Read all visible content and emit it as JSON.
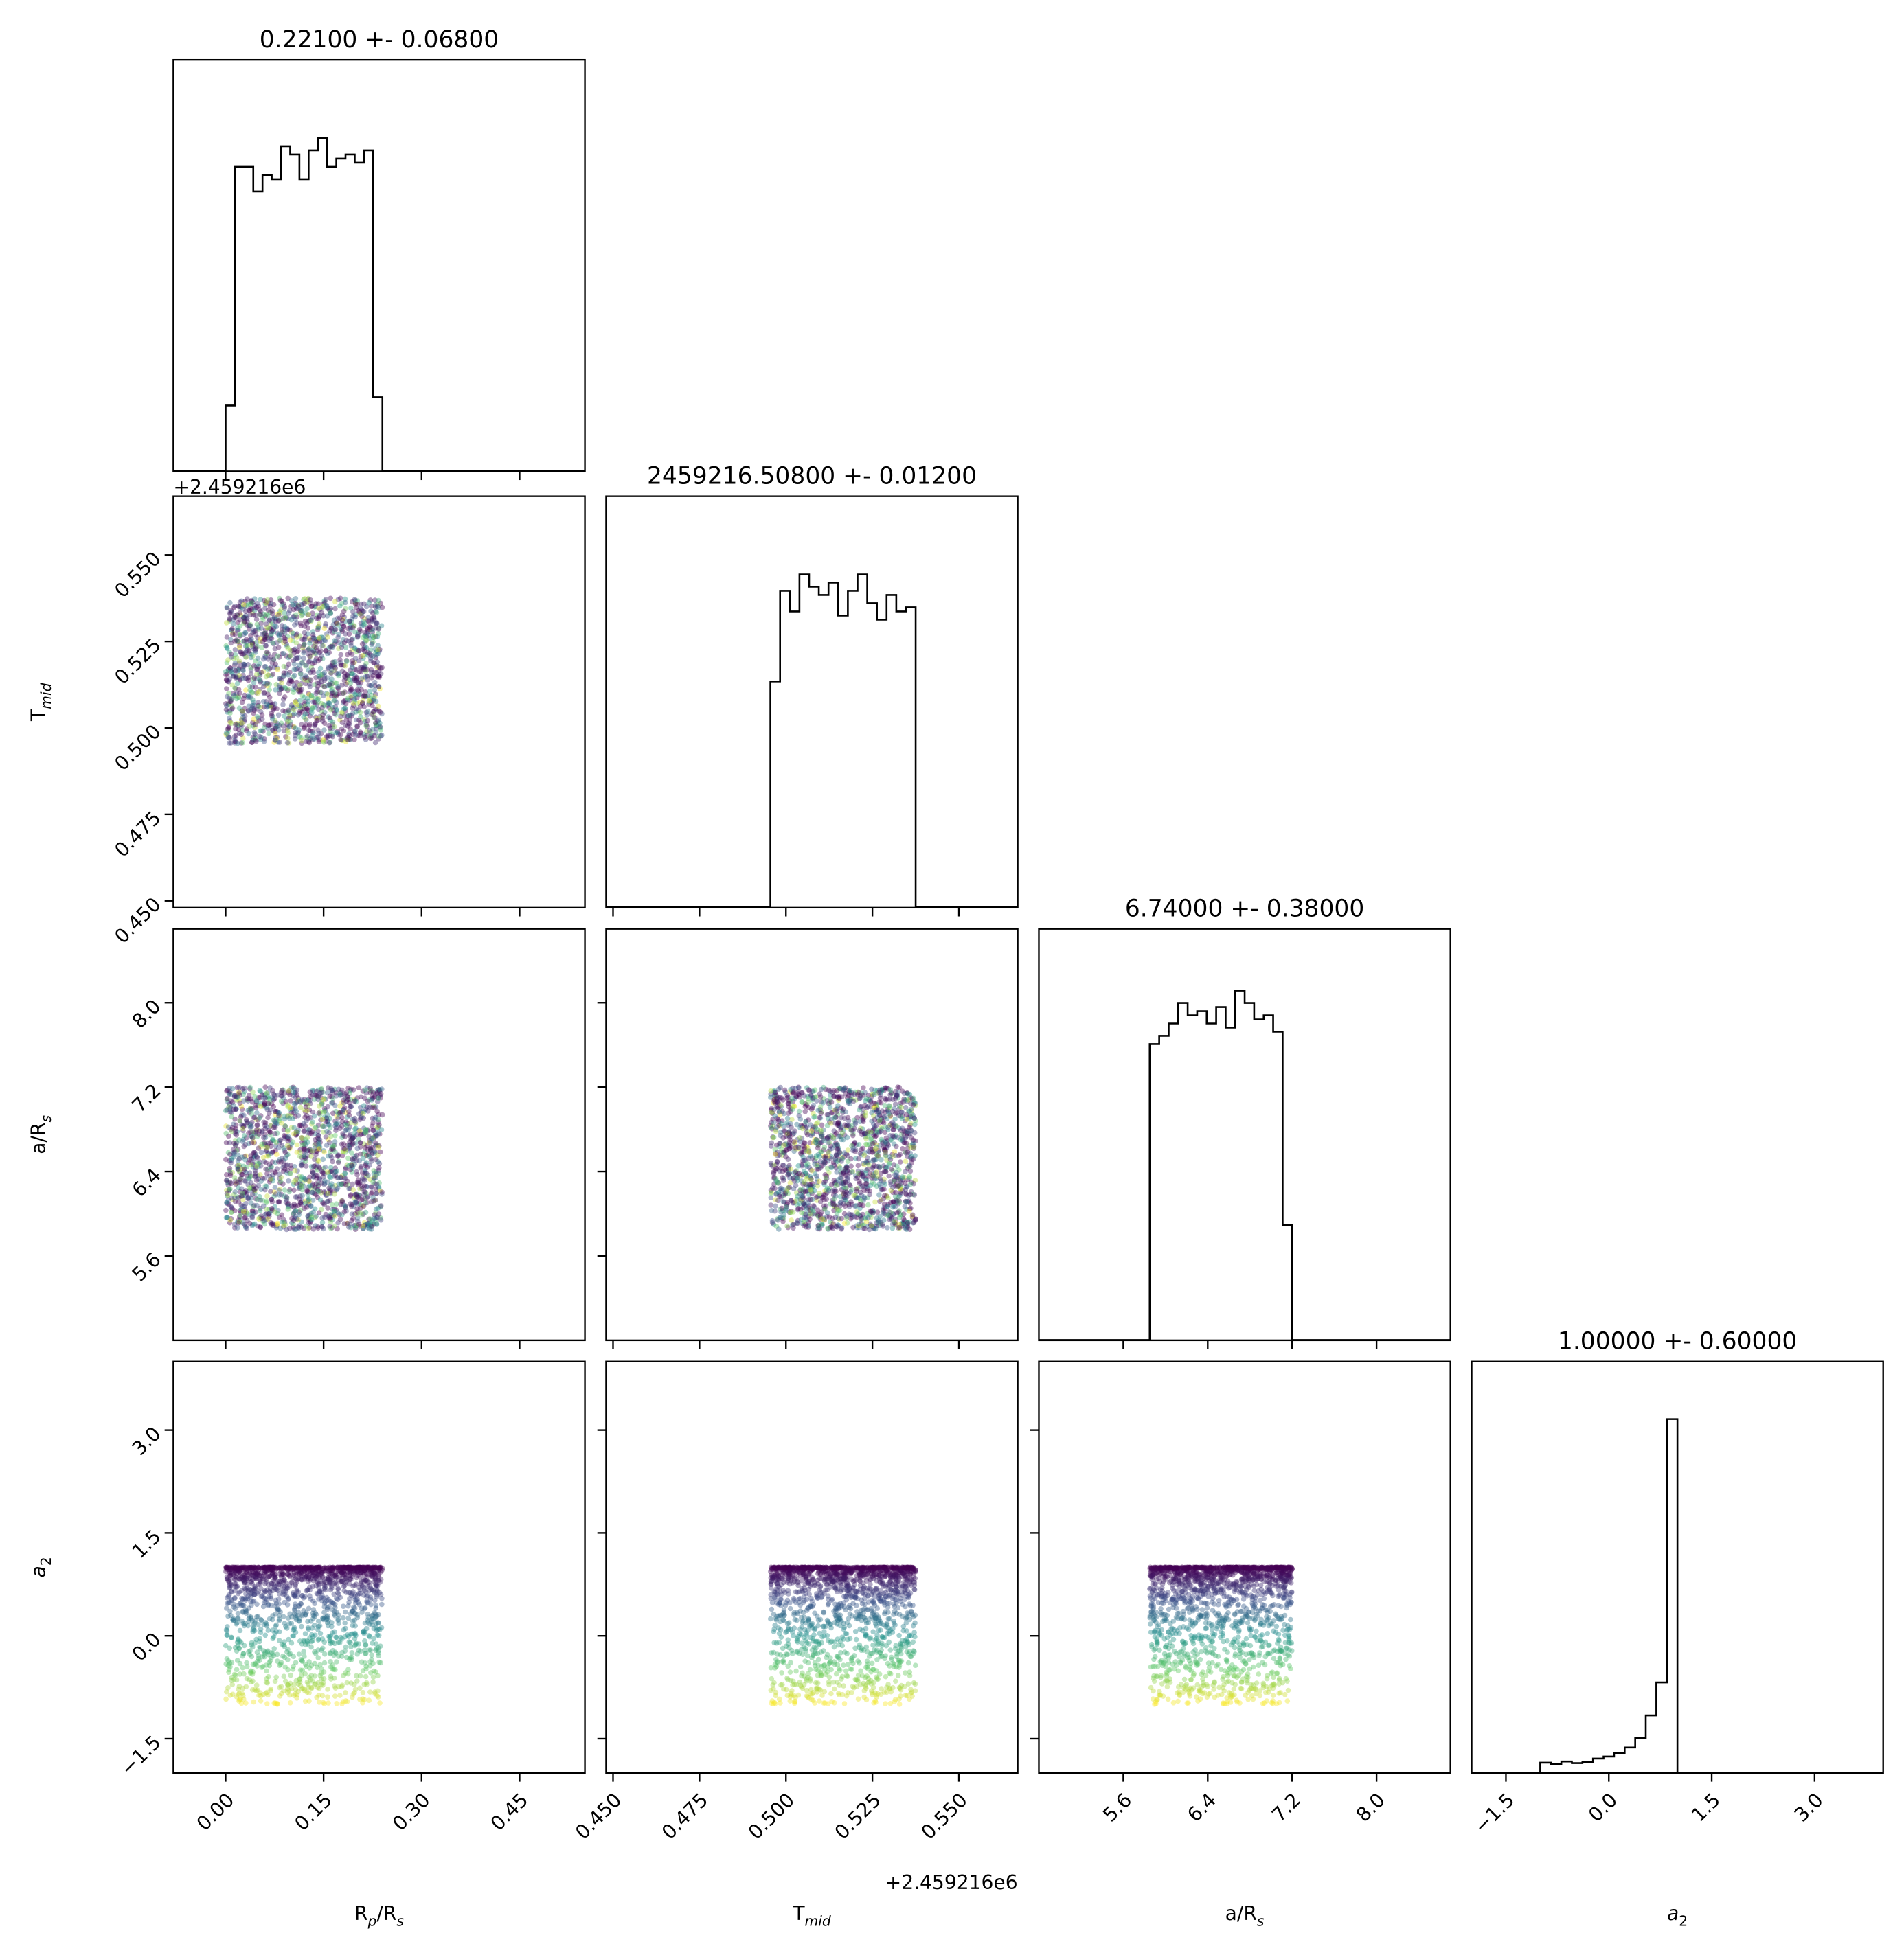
{
  "chart_data": {
    "type": "corner_plot",
    "parameters": [
      {
        "key": "rp",
        "label_main": "R",
        "label_sub": "p",
        "label_tail": "/R",
        "label_tail_sub": "s",
        "title": "0.22100 +- 0.06800",
        "range": [
          -0.08,
          0.55
        ],
        "ticks": [
          0.0,
          0.15,
          0.3,
          0.45
        ],
        "tick_labels": [
          "0.00",
          "0.15",
          "0.30",
          "0.45"
        ],
        "dist": [
          0.0,
          0.24
        ]
      },
      {
        "key": "tmid",
        "label_main": "T",
        "label_sub": "mid",
        "label_tail": "",
        "label_tail_sub": "",
        "title": "2459216.50800 +- 0.01200",
        "range": [
          0.448,
          0.567
        ],
        "ticks": [
          0.45,
          0.475,
          0.5,
          0.525,
          0.55
        ],
        "tick_labels": [
          "0.450",
          "0.475",
          "0.500",
          "0.525",
          "0.550"
        ],
        "offset": "+2.459216e6",
        "dist": [
          0.4955,
          0.5375
        ]
      },
      {
        "key": "ars",
        "label_main": "a/R",
        "label_sub": "s",
        "label_tail": "",
        "label_tail_sub": "",
        "title": "6.74000 +- 0.38000",
        "range": [
          4.8,
          8.7
        ],
        "ticks": [
          5.6,
          6.4,
          7.2,
          8.0
        ],
        "tick_labels": [
          "5.6",
          "6.4",
          "7.2",
          "8.0"
        ],
        "dist": [
          5.85,
          7.2
        ]
      },
      {
        "key": "a2",
        "label_main": "a",
        "label_sub": "2",
        "label_tail": "",
        "label_tail_sub": "",
        "italic": true,
        "title": "1.00000 +- 0.60000",
        "range": [
          -2.0,
          4.0
        ],
        "ticks": [
          -1.5,
          0.0,
          1.5,
          3.0
        ],
        "tick_labels": [
          "−1.5",
          "0.0",
          "1.5",
          "3.0"
        ],
        "dist": [
          -1.0,
          1.0
        ]
      }
    ],
    "histograms": {
      "rp": [
        0.16,
        0.74,
        0.74,
        0.68,
        0.72,
        0.71,
        0.79,
        0.77,
        0.71,
        0.78,
        0.81,
        0.74,
        0.76,
        0.77,
        0.75,
        0.78,
        0.18
      ],
      "tmid": [
        0.55,
        0.77,
        0.72,
        0.81,
        0.78,
        0.76,
        0.79,
        0.71,
        0.77,
        0.81,
        0.74,
        0.7,
        0.76,
        0.72,
        0.73
      ],
      "ars": [
        0.72,
        0.74,
        0.77,
        0.82,
        0.79,
        0.8,
        0.77,
        0.81,
        0.76,
        0.85,
        0.82,
        0.78,
        0.79,
        0.75,
        0.28
      ],
      "a2": [
        0.025,
        0.022,
        0.028,
        0.024,
        0.027,
        0.035,
        0.04,
        0.048,
        0.062,
        0.085,
        0.14,
        0.22,
        0.86
      ]
    },
    "colormap": "viridis",
    "colored_by": "a2",
    "grid": false
  }
}
